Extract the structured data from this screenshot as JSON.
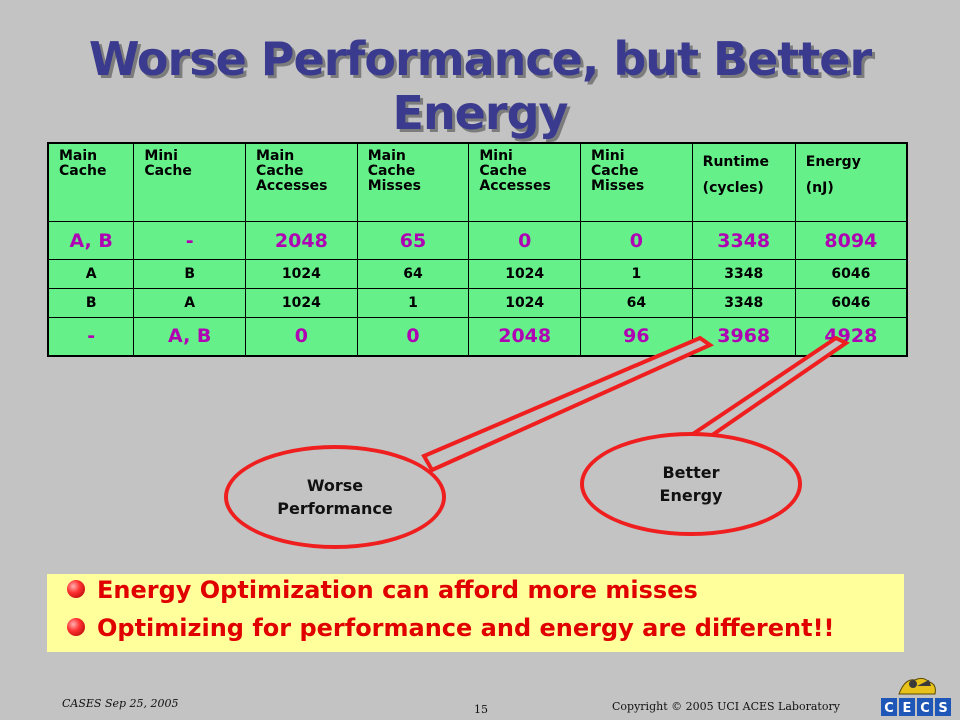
{
  "slide": {
    "title": "Worse Performance, but Better Energy"
  },
  "table": {
    "headers": [
      [
        "Main",
        "Cache"
      ],
      [
        "Mini",
        "Cache"
      ],
      [
        "Main",
        "Cache",
        "Accesses"
      ],
      [
        "Main",
        "Cache",
        "Misses"
      ],
      [
        "Mini",
        "Cache",
        "Accesses"
      ],
      [
        "Mini",
        "Cache",
        "Misses"
      ],
      [
        "Runtime",
        "(cycles)"
      ],
      [
        "Energy",
        "(nJ)"
      ]
    ],
    "rows": [
      [
        "A, B",
        "-",
        "2048",
        "65",
        "0",
        "0",
        "3348",
        "8094"
      ],
      [
        "A",
        "B",
        "1024",
        "64",
        "1024",
        "1",
        "3348",
        "6046"
      ],
      [
        "B",
        "A",
        "1024",
        "1",
        "1024",
        "64",
        "3348",
        "6046"
      ],
      [
        "-",
        "A, B",
        "0",
        "0",
        "2048",
        "96",
        "3968",
        "4928"
      ]
    ]
  },
  "callouts": {
    "worse_line1": "Worse",
    "worse_line2": "Performance",
    "better_line1": "Better",
    "better_line2": "Energy"
  },
  "bullets": [
    "Energy Optimization can afford more misses",
    "Optimizing for performance and energy are different!!"
  ],
  "footer": {
    "left": "CASES Sep 25, 2005",
    "page": "15",
    "right": "Copyright © 2005 UCI ACES Laboratory"
  },
  "logo": {
    "text": "CECS"
  },
  "colors": {
    "title": "#3a3a8e",
    "table_bg": "#66f08a",
    "highlight_row_text": "#b000b4",
    "callout_border": "#ef1f1f",
    "bullet_text": "#e00000",
    "bullet_box": "#ffff9c",
    "background": "#c3c3c3"
  }
}
